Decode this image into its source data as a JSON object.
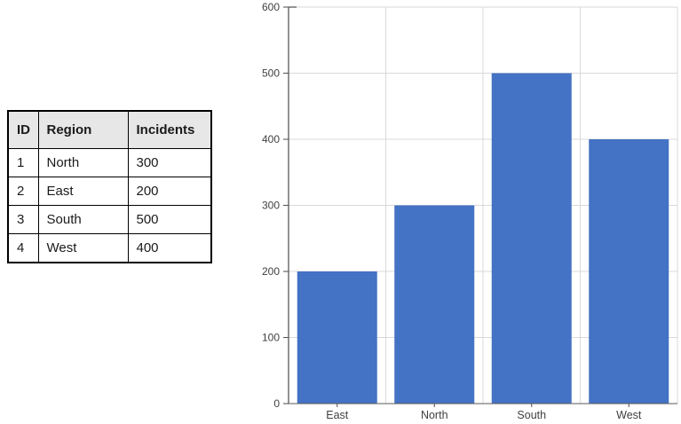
{
  "table": {
    "columns": [
      "ID",
      "Region",
      "Incidents"
    ],
    "rows": [
      [
        "1",
        "North",
        "300"
      ],
      [
        "2",
        "East",
        "200"
      ],
      [
        "3",
        "South",
        "500"
      ],
      [
        "4",
        "West",
        "400"
      ]
    ],
    "header_bg": "#e7e7e7",
    "border_color": "#000000"
  },
  "chart_data": {
    "type": "bar",
    "categories": [
      "East",
      "North",
      "South",
      "West"
    ],
    "values": [
      200,
      300,
      500,
      400
    ],
    "title": "",
    "xlabel": "",
    "ylabel": "",
    "ylim": [
      0,
      600
    ],
    "ytick_step": 100,
    "yticks": [
      0,
      100,
      200,
      300,
      400,
      500,
      600
    ],
    "grid": true,
    "legend": "none",
    "bar_color": "#4472C4",
    "gridline_color": "#D9D9D9",
    "axis_color": "#595959",
    "label_color": "#404040"
  }
}
